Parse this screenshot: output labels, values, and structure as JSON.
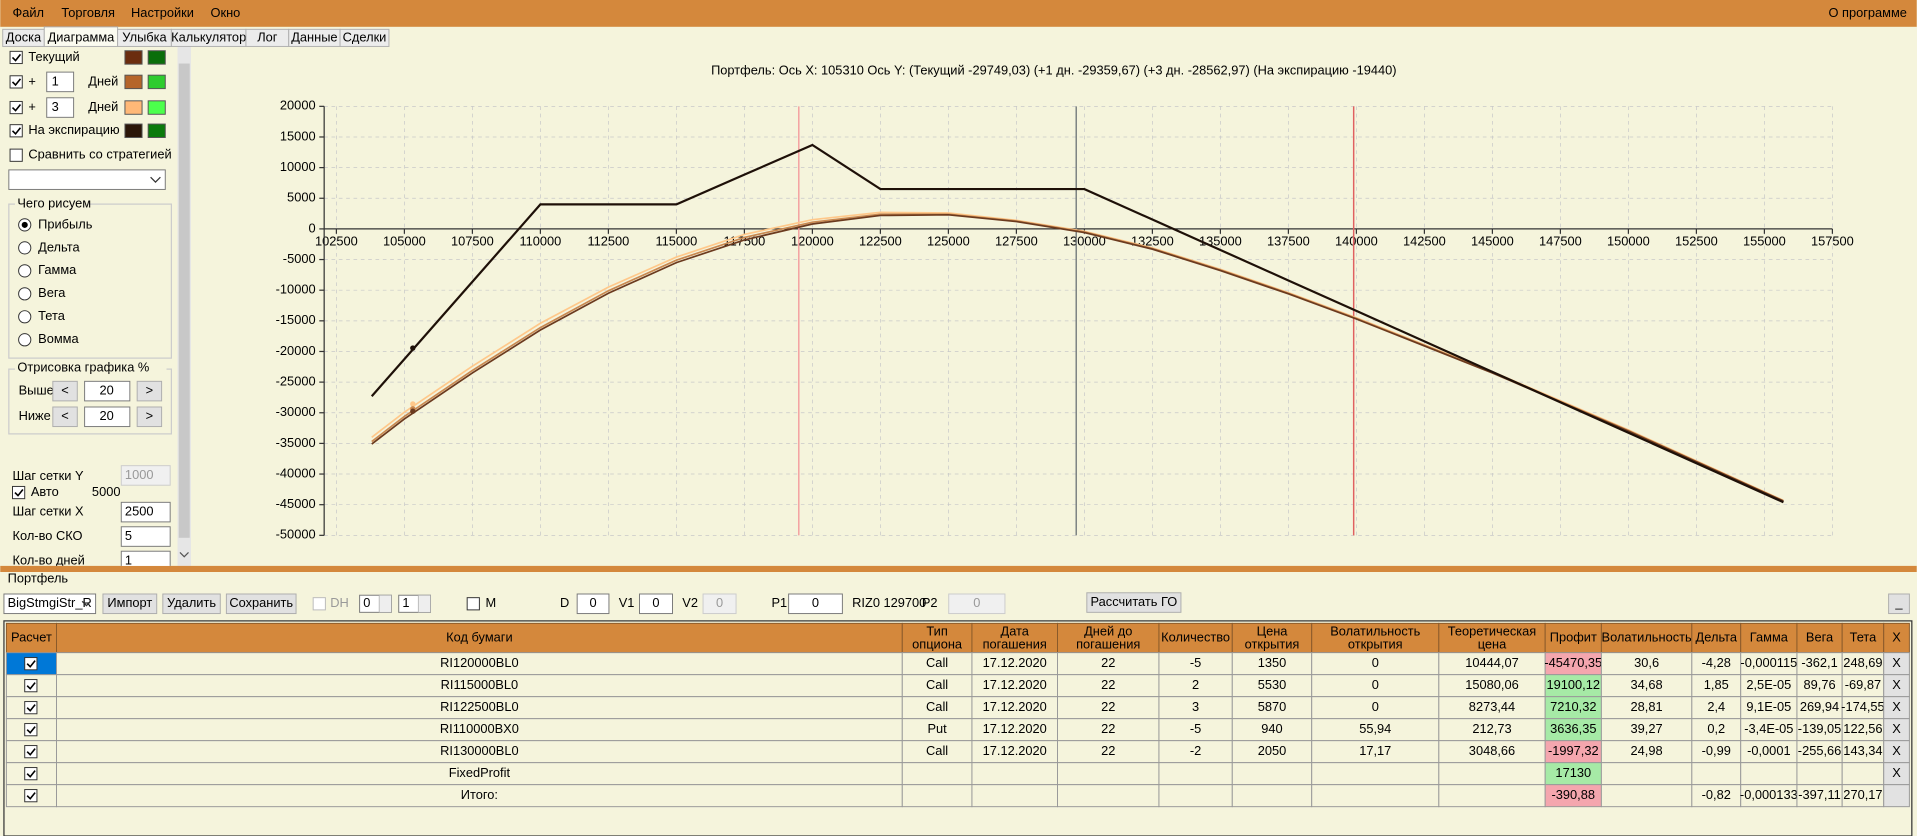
{
  "menu": {
    "items": [
      "Файл",
      "Торговля",
      "Настройки",
      "Окно"
    ],
    "about": "О программе"
  },
  "tabs": {
    "items": [
      "Доска",
      "Диаграмма",
      "Улыбка",
      "Калькулятор",
      "Лог",
      "Данные",
      "Сделки"
    ],
    "selected": 1
  },
  "left_panel": {
    "current": {
      "label": "Текущий",
      "colors": [
        "#6b2d0f",
        "#0a6e0a"
      ]
    },
    "day_rows": [
      {
        "plus": "+",
        "days": "1",
        "unit": "Дней",
        "colors": [
          "#b5652a",
          "#2ecc2e"
        ]
      },
      {
        "plus": "+",
        "days": "3",
        "unit": "Дней",
        "colors": [
          "#ffb877",
          "#4cff4c"
        ]
      }
    ],
    "expiration": {
      "label": "На экспирацию",
      "colors": [
        "#2b1608",
        "#0b7a0b"
      ]
    },
    "compare": "Сравнить со стратегией",
    "draw_group": {
      "title": "Чего рисуем",
      "options": [
        "Прибыль",
        "Дельта",
        "Гамма",
        "Вега",
        "Тета",
        "Вомма"
      ],
      "selected": 0
    },
    "range_group": {
      "title": "Отрисовка графика %",
      "rows": [
        {
          "label": "Выше",
          "dec": "<",
          "value": "20",
          "inc": ">"
        },
        {
          "label": "Ниже",
          "dec": "<",
          "value": "20",
          "inc": ">"
        }
      ]
    },
    "grid_y": {
      "label": "Шаг сетки Y",
      "value": "1000"
    },
    "auto": {
      "label": "Авто",
      "value": "5000"
    },
    "fields": [
      {
        "label": "Шаг сетки X",
        "value": "2500"
      },
      {
        "label": "Кол-во СКО",
        "value": "5"
      },
      {
        "label": "Кол-во дней",
        "value": "1"
      }
    ]
  },
  "chart_data": {
    "type": "line",
    "title": "Портфель:  Ось X:  105310  Ось Y:   (Текущий  -29749,03)   (+1 дн.  -29359,67)   (+3 дн.  -28562,97)   (На экспирацию  -19440)",
    "x": [
      103800,
      105000,
      107500,
      110000,
      112500,
      115000,
      117500,
      120000,
      122500,
      125000,
      127500,
      130000,
      132500,
      135000,
      137500,
      140000,
      145000,
      150000,
      155700
    ],
    "series": [
      {
        "color": "#ffc88a",
        "values": [
          -34000,
          -29900,
          -22400,
          -15400,
          -9500,
          -4600,
          -900,
          1500,
          2700,
          2600,
          1400,
          -400,
          -3100,
          -6600,
          -10400,
          -14500,
          -23300,
          -32800,
          -44300
        ]
      },
      {
        "color": "#c88850",
        "values": [
          -34700,
          -30600,
          -23100,
          -16100,
          -10100,
          -5100,
          -1400,
          1100,
          2400,
          2400,
          1300,
          -500,
          -3200,
          -6700,
          -10500,
          -14600,
          -23400,
          -32900,
          -44400
        ]
      },
      {
        "color": "#6b3a1e",
        "values": [
          -35100,
          -31000,
          -23500,
          -16500,
          -10500,
          -5500,
          -1800,
          800,
          2200,
          2300,
          1200,
          -600,
          -3300,
          -6800,
          -10600,
          -14700,
          -23500,
          -33000,
          -44400
        ]
      },
      {
        "color": "#1e1008",
        "values": [
          -27300,
          -21242,
          -8622,
          4000,
          4000,
          4000,
          8850,
          13700,
          6500,
          6500,
          6500,
          6500,
          1530,
          -3440,
          -8410,
          -13380,
          -23320,
          -33260,
          -44600
        ]
      }
    ],
    "cursor": {
      "x": 105310,
      "values": [
        -28562.97,
        -29359.67,
        -29749.03,
        -19440
      ]
    },
    "vlines": [
      {
        "value": 119500,
        "color": "#f4a0a0"
      },
      {
        "value": 129700,
        "color": "#7a8080"
      },
      {
        "value": 139900,
        "color": "#e06060"
      }
    ],
    "xlim": [
      102500,
      157500
    ],
    "ylim": [
      -50000,
      20000
    ],
    "xticks": [
      102500,
      105000,
      107500,
      110000,
      112500,
      115000,
      117500,
      120000,
      122500,
      125000,
      127500,
      130000,
      132500,
      135000,
      137500,
      140000,
      142500,
      145000,
      147500,
      150000,
      152500,
      155000,
      157500
    ],
    "yticks": [
      -50000,
      -45000,
      -40000,
      -35000,
      -30000,
      -25000,
      -20000,
      -15000,
      -10000,
      -5000,
      0,
      5000,
      10000,
      15000,
      20000
    ],
    "grid": true
  },
  "portfolio": {
    "title": "Портфель",
    "strategy": "BigStmgiStr_R",
    "buttons": [
      "Импорт",
      "Удалить",
      "Сохранить"
    ],
    "dh": "DH",
    "dh_values": [
      "0",
      "1"
    ],
    "m": "M",
    "d": "D",
    "d_value": "0",
    "v1": "V1",
    "v1_value": "0",
    "v2": "V2",
    "v2_value": "0",
    "p1": "P1",
    "p1_value": "0",
    "price": "RIZ0 129700",
    "p2": "P2",
    "p2_value": "0",
    "calc": "Рассчитать ГО",
    "minimize": "_"
  },
  "table": {
    "headers": [
      [
        "Расчет"
      ],
      [
        "Код бумаги"
      ],
      [
        "Тип",
        "опциона"
      ],
      [
        "Дата",
        "погашения"
      ],
      [
        "Дней до",
        "погашения"
      ],
      [
        "Количество"
      ],
      [
        "Цена",
        "открытия"
      ],
      [
        "Волатильность",
        "открытия"
      ],
      [
        "Теоретическая",
        "цена"
      ],
      [
        "Профит"
      ],
      [
        "Волатильность"
      ],
      [
        "Дельта"
      ],
      [
        "Гамма"
      ],
      [
        "Вега"
      ],
      [
        "Тета"
      ],
      [
        "X"
      ]
    ],
    "rows": [
      [
        "RI120000BL0",
        "Call",
        "17.12.2020",
        "22",
        "-5",
        "1350",
        "0",
        "10444,07",
        "-45470,35",
        "30,6",
        "-4,28",
        "-0,000115",
        "-362,1",
        "248,69",
        "X"
      ],
      [
        "RI115000BL0",
        "Call",
        "17.12.2020",
        "22",
        "2",
        "5530",
        "0",
        "15080,06",
        "19100,12",
        "34,68",
        "1,85",
        "2,5E-05",
        "89,76",
        "-69,87",
        "X"
      ],
      [
        "RI122500BL0",
        "Call",
        "17.12.2020",
        "22",
        "3",
        "5870",
        "0",
        "8273,44",
        "7210,32",
        "28,81",
        "2,4",
        "9,1E-05",
        "269,94",
        "-174,55",
        "X"
      ],
      [
        "RI110000BX0",
        "Put",
        "17.12.2020",
        "22",
        "-5",
        "940",
        "55,94",
        "212,73",
        "3636,35",
        "39,27",
        "0,2",
        "-3,4E-05",
        "-139,05",
        "122,56",
        "X"
      ],
      [
        "RI130000BL0",
        "Call",
        "17.12.2020",
        "22",
        "-2",
        "2050",
        "17,17",
        "3048,66",
        "-1997,32",
        "24,98",
        "-0,99",
        "-0,0001",
        "-255,66",
        "143,34",
        "X"
      ],
      [
        "FixedProfit",
        null,
        null,
        null,
        null,
        null,
        null,
        null,
        "17130",
        null,
        null,
        null,
        null,
        null,
        "X"
      ],
      [
        "Итого:",
        null,
        null,
        null,
        null,
        null,
        null,
        null,
        "-390,88",
        null,
        "-0,82",
        "-0,000133",
        "-397,11",
        "270,17",
        null
      ]
    ]
  }
}
